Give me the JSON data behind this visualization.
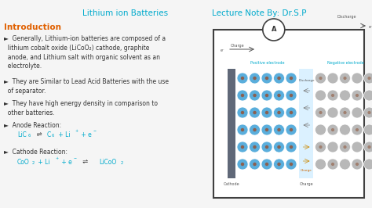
{
  "bg_color": "#f5f5f5",
  "title_left": "Lithium ion Batteries",
  "title_right": "Lecture Note By: Dr.S.P",
  "title_color": "#00aacc",
  "intro_color": "#e06000",
  "bullet_color": "#333333",
  "equation_color": "#00aacc",
  "intro_text": "Introduction",
  "diagram": {
    "electrode_color": "#606878",
    "separator_color": "#d8f0ff",
    "circle_blue": "#5aaedc",
    "circle_gray": "#b8b8b8",
    "circle_dot_blue": "#8b6050",
    "circle_dot_gray": "#a08070"
  }
}
